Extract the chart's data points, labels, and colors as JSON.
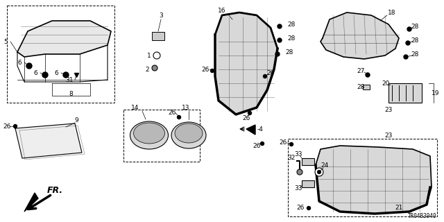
{
  "bg_color": "#ffffff",
  "diagram_id": "TR04B3940",
  "label_size": 6.5,
  "small_label_size": 5.5
}
